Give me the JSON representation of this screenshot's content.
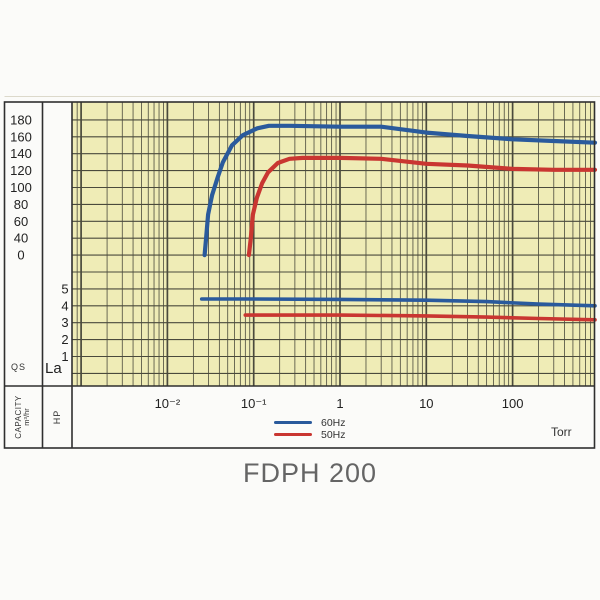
{
  "title": "FDPH 200",
  "colors": {
    "plot_background": "#efecb6",
    "grid": "#4a4a3c",
    "border": "#2f2f2f",
    "series_60hz": "#2a5a9c",
    "series_50hz": "#c93631",
    "title_text": "#656565"
  },
  "chart_data": {
    "type": "line",
    "title": "FDPH 200",
    "grid": "log-x full grid on",
    "legend_position": "bottom",
    "x_axis": {
      "label": "Torr",
      "scale": "log",
      "range_torr": [
        0.0008,
        900
      ],
      "ticks": [
        {
          "label": "10⁻²",
          "value": 0.01
        },
        {
          "label": "10⁻¹",
          "value": 0.1
        },
        {
          "label": "1",
          "value": 1
        },
        {
          "label": "10",
          "value": 10
        },
        {
          "label": "100",
          "value": 100
        }
      ]
    },
    "y_axis_capacity": {
      "title": "CAPACITY",
      "unit": "m³/hr",
      "corner_label": "QS",
      "ticks": [
        "180",
        "160",
        "140",
        "120",
        "100",
        "80",
        "60",
        "40",
        "0"
      ],
      "note": "tick labels sit on successive gridlines; 20 is skipped, 0 is one gridline below 40"
    },
    "y_axis_hp": {
      "title": "HP",
      "corner_label": "La",
      "ticks": [
        "5",
        "4",
        "3",
        "2",
        "1"
      ]
    },
    "legend": [
      {
        "label": "60Hz",
        "color": "#2a5a9c"
      },
      {
        "label": "50Hz",
        "color": "#c93631"
      }
    ],
    "series": [
      {
        "name": "60Hz capacity",
        "axis": "capacity",
        "unit": "m³/hr",
        "color": "#2a5a9c",
        "points": [
          [
            0.027,
            0
          ],
          [
            0.0281,
            40
          ],
          [
            0.0296,
            68
          ],
          [
            0.033,
            91
          ],
          [
            0.038,
            111
          ],
          [
            0.044,
            130
          ],
          [
            0.056,
            150
          ],
          [
            0.075,
            162
          ],
          [
            0.11,
            170
          ],
          [
            0.15,
            173
          ],
          [
            0.26,
            173
          ],
          [
            1,
            172
          ],
          [
            3,
            172
          ],
          [
            10,
            165
          ],
          [
            30,
            161
          ],
          [
            100,
            157
          ],
          [
            300,
            155
          ],
          [
            900,
            153
          ]
        ]
      },
      {
        "name": "50Hz capacity",
        "axis": "capacity",
        "unit": "m³/hr",
        "color": "#c93631",
        "points": [
          [
            0.088,
            0
          ],
          [
            0.0926,
            40
          ],
          [
            0.098,
            68
          ],
          [
            0.109,
            88
          ],
          [
            0.125,
            105
          ],
          [
            0.147,
            118
          ],
          [
            0.19,
            129
          ],
          [
            0.26,
            134
          ],
          [
            0.37,
            135
          ],
          [
            1,
            135
          ],
          [
            3,
            134
          ],
          [
            10,
            128
          ],
          [
            30,
            126
          ],
          [
            100,
            122
          ],
          [
            300,
            121
          ],
          [
            900,
            121
          ]
        ]
      },
      {
        "name": "60Hz power",
        "axis": "hp",
        "unit": "HP",
        "color": "#2a5a9c",
        "points": [
          [
            0.025,
            4.4
          ],
          [
            0.1,
            4.4
          ],
          [
            1,
            4.38
          ],
          [
            10,
            4.33
          ],
          [
            50,
            4.25
          ],
          [
            200,
            4.1
          ],
          [
            900,
            4.0
          ]
        ]
      },
      {
        "name": "50Hz power",
        "axis": "hp",
        "unit": "HP",
        "color": "#c93631",
        "points": [
          [
            0.08,
            3.45
          ],
          [
            1,
            3.45
          ],
          [
            10,
            3.4
          ],
          [
            50,
            3.33
          ],
          [
            200,
            3.25
          ],
          [
            900,
            3.17
          ]
        ]
      }
    ]
  }
}
